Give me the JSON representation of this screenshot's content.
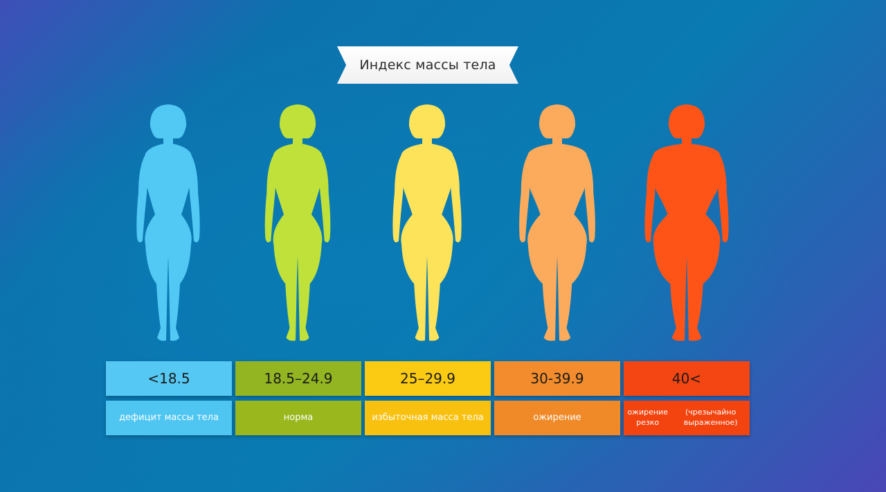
{
  "title": "Индекс массы тела",
  "categories": [
    {
      "range": "<18.5",
      "label": "дефицит массы тела",
      "figure_color": "#52c9f5",
      "top_color": "#56c8f4",
      "bottom_color": "#4fc6f2",
      "icon": "slim-woman-silhouette-icon"
    },
    {
      "range": "18.5–24.9",
      "label": "норма",
      "figure_color": "#bfe13a",
      "top_color": "#93b522",
      "bottom_color": "#9ab71e",
      "icon": "normal-woman-silhouette-icon"
    },
    {
      "range": "25–29.9",
      "label": "избыточная масса тела",
      "figure_color": "#fde35a",
      "top_color": "#fbcb13",
      "bottom_color": "#f9c10f",
      "icon": "overweight-woman-silhouette-icon"
    },
    {
      "range": "30-39.9",
      "label": "ожирение",
      "figure_color": "#fcaa5c",
      "top_color": "#f28c2c",
      "bottom_color": "#f08a28",
      "icon": "obese-woman-silhouette-icon"
    },
    {
      "range": "40<",
      "label": "ожирение резко (чрезычайно выраженное)",
      "figure_color": "#ff5417",
      "top_color": "#f44613",
      "bottom_color": "#f3430f",
      "icon": "severely-obese-woman-silhouette-icon"
    }
  ]
}
